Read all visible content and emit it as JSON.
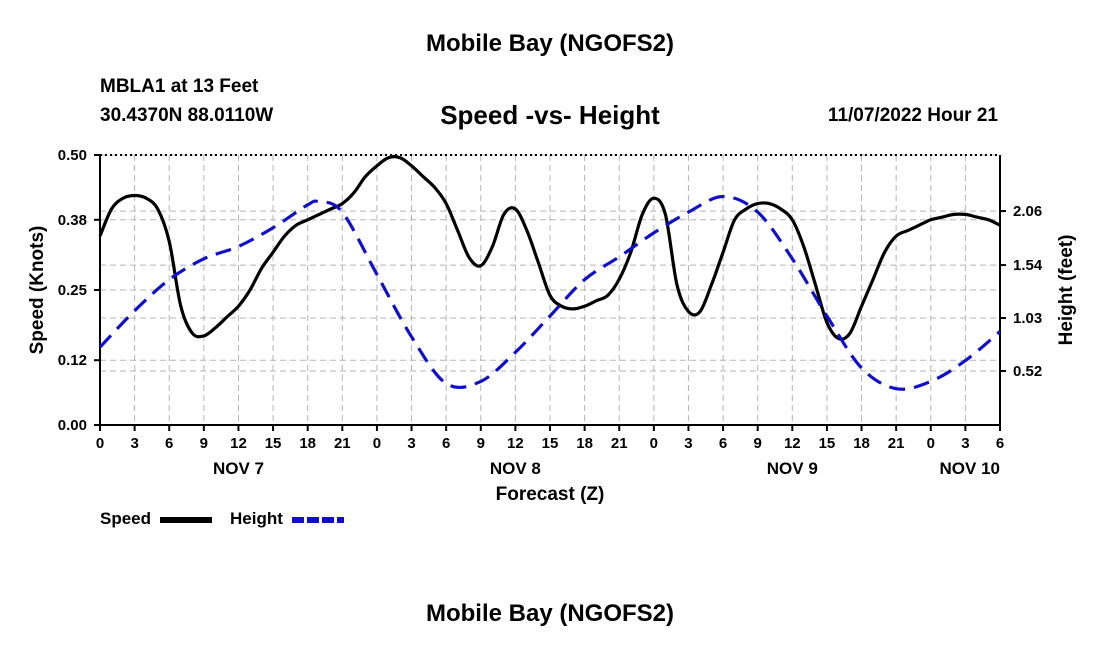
{
  "header": {
    "title": "Mobile Bay (NGOFS2)",
    "station": "MBLA1 at 13 Feet",
    "coords": "30.4370N  88.0110W",
    "subtitle": "Speed -vs- Height",
    "datetime": "11/07/2022 Hour 21"
  },
  "footer": {
    "title": "Mobile Bay (NGOFS2)"
  },
  "chart_data": {
    "type": "line",
    "title": "Speed -vs- Height",
    "xlabel": "Forecast (Z)",
    "ylabel": "Speed (Knots)",
    "y2label": "Height (feet)",
    "xlim": [
      0,
      78
    ],
    "ylim": [
      0,
      0.5
    ],
    "y2lim": [
      0.0,
      2.6
    ],
    "x_ticks": [
      0,
      3,
      6,
      9,
      12,
      15,
      18,
      21,
      24,
      27,
      30,
      33,
      36,
      39,
      42,
      45,
      48,
      51,
      54,
      57,
      60,
      63,
      66,
      69,
      72,
      75,
      78
    ],
    "x_tick_labels": [
      "0",
      "3",
      "6",
      "9",
      "12",
      "15",
      "18",
      "21",
      "0",
      "3",
      "6",
      "9",
      "12",
      "15",
      "18",
      "21",
      "0",
      "3",
      "6",
      "9",
      "12",
      "15",
      "18",
      "21",
      "0",
      "3",
      "6"
    ],
    "date_labels": [
      {
        "x": 12,
        "label": "NOV 7"
      },
      {
        "x": 36,
        "label": "NOV 8"
      },
      {
        "x": 60,
        "label": "NOV 9"
      },
      {
        "x": 78,
        "label": "NOV 10"
      }
    ],
    "y_ticks": [
      0.0,
      0.12,
      0.25,
      0.38,
      0.5
    ],
    "y_tick_labels": [
      "0.00",
      "0.12",
      "0.25",
      "0.38",
      "0.50"
    ],
    "y2_ticks": [
      0.52,
      1.03,
      1.54,
      2.06
    ],
    "y2_tick_labels": [
      "0.52",
      "1.03",
      "1.54",
      "2.06"
    ],
    "grid": true,
    "legend": [
      {
        "name": "Speed",
        "color": "#000000",
        "dash": "solid"
      },
      {
        "name": "Height",
        "color": "#1010cc",
        "dash": "dashed"
      }
    ],
    "series": [
      {
        "name": "Speed",
        "axis": "left",
        "color": "#000000",
        "x": [
          0,
          1,
          2,
          3,
          4,
          5,
          6,
          7,
          8,
          9,
          10,
          11,
          12,
          13,
          14,
          15,
          16,
          17,
          18,
          19,
          20,
          21,
          22,
          23,
          24,
          25,
          26,
          27,
          28,
          29,
          30,
          31,
          32,
          33,
          34,
          35,
          36,
          37,
          38,
          39,
          40,
          41,
          42,
          43,
          44,
          45,
          46,
          47,
          48,
          49,
          50,
          51,
          52,
          53,
          54,
          55,
          56,
          57,
          58,
          59,
          60,
          61,
          62,
          63,
          64,
          65,
          66,
          67,
          68,
          69,
          70,
          71,
          72,
          73,
          74,
          75,
          76,
          77,
          78
        ],
        "values": [
          0.35,
          0.4,
          0.42,
          0.425,
          0.42,
          0.4,
          0.34,
          0.22,
          0.17,
          0.165,
          0.18,
          0.2,
          0.22,
          0.25,
          0.29,
          0.32,
          0.35,
          0.37,
          0.38,
          0.39,
          0.4,
          0.41,
          0.43,
          0.46,
          0.48,
          0.495,
          0.495,
          0.48,
          0.46,
          0.44,
          0.41,
          0.36,
          0.31,
          0.295,
          0.33,
          0.39,
          0.4,
          0.36,
          0.3,
          0.24,
          0.22,
          0.215,
          0.22,
          0.23,
          0.24,
          0.27,
          0.32,
          0.39,
          0.42,
          0.39,
          0.26,
          0.21,
          0.21,
          0.26,
          0.32,
          0.38,
          0.4,
          0.41,
          0.41,
          0.4,
          0.38,
          0.33,
          0.26,
          0.19,
          0.16,
          0.17,
          0.22,
          0.27,
          0.32,
          0.35,
          0.36,
          0.37,
          0.38,
          0.385,
          0.39,
          0.39,
          0.385,
          0.38,
          0.37
        ]
      },
      {
        "name": "Height",
        "axis": "right",
        "color": "#1010cc",
        "x": [
          0,
          3,
          6,
          9,
          12,
          15,
          18,
          19,
          21,
          24,
          27,
          30,
          33,
          36,
          39,
          42,
          45,
          48,
          51,
          54,
          57,
          60,
          63,
          66,
          69,
          72,
          75,
          78
        ],
        "values": [
          0.75,
          1.1,
          1.4,
          1.6,
          1.72,
          1.9,
          2.12,
          2.15,
          2.05,
          1.45,
          0.85,
          0.4,
          0.42,
          0.7,
          1.05,
          1.4,
          1.62,
          1.85,
          2.05,
          2.2,
          2.05,
          1.6,
          1.05,
          0.55,
          0.35,
          0.42,
          0.62,
          0.9
        ]
      }
    ]
  }
}
